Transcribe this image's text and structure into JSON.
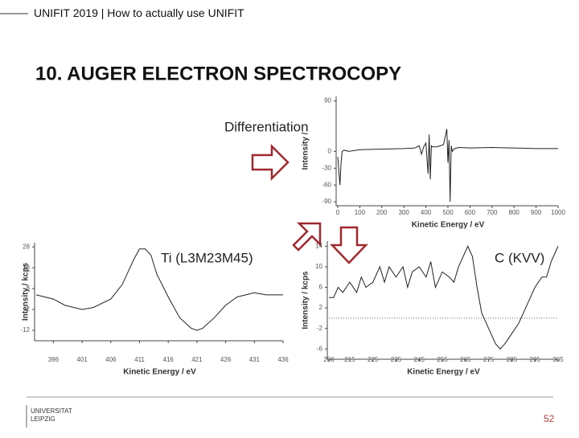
{
  "header": {
    "brand": "UNIFIT 2019",
    "subtitle": " | How to actually use UNIFIT"
  },
  "title": "10. AUGER ELECTRON SPECTROCOPY",
  "annotations": {
    "differentiation": "Differentiation",
    "ti": "Ti (L3M23M45)",
    "c": "C (KVV)"
  },
  "footer": {
    "logo": [
      "UNIVERSITAT",
      "LEIPZIG"
    ],
    "page": "52"
  },
  "chart_data": [
    {
      "type": "line",
      "xlabel": "Kinetic Energy / eV",
      "ylabel": "Intensity /",
      "color": "#222222",
      "x": [
        0,
        10,
        15,
        20,
        30,
        50,
        100,
        200,
        300,
        350,
        370,
        380,
        390,
        400,
        410,
        415,
        420,
        425,
        430,
        450,
        480,
        495,
        500,
        505,
        510,
        515,
        520,
        530,
        550,
        600,
        700,
        800,
        900,
        1000
      ],
      "values": [
        -10,
        -60,
        -20,
        0,
        2,
        0,
        3,
        4,
        5,
        6,
        10,
        -5,
        8,
        15,
        -40,
        30,
        -50,
        10,
        8,
        8,
        12,
        40,
        -20,
        20,
        -90,
        10,
        0,
        5,
        7,
        6,
        7,
        6,
        5,
        5
      ],
      "xlim": [
        0,
        1000
      ],
      "ylim": [
        -97,
        98
      ],
      "xticks": [
        0,
        100,
        200,
        300,
        400,
        500,
        600,
        700,
        800,
        900,
        1000
      ],
      "yticks": [
        90,
        0,
        -30,
        -60,
        -90
      ]
    },
    {
      "type": "line",
      "xlabel": "Kinetic Energy / eV",
      "ylabel": "Intensity / kcps",
      "color": "#222222",
      "x": [
        393,
        396,
        398,
        401,
        403,
        406,
        408,
        410,
        411,
        412,
        413,
        414,
        416,
        418,
        420,
        421,
        422,
        424,
        426,
        428,
        431,
        433,
        436
      ],
      "values": [
        5,
        3,
        0,
        -2,
        -1,
        3,
        10,
        22,
        27,
        27,
        24,
        15,
        4,
        -6,
        -11,
        -12,
        -11,
        -6,
        0,
        4,
        6,
        5,
        5
      ],
      "xlim": [
        393,
        436
      ],
      "ylim": [
        -17,
        30
      ],
      "xticks": [
        396,
        401,
        406,
        411,
        416,
        421,
        426,
        431,
        436
      ],
      "yticks": [
        28,
        18,
        8,
        -2,
        -12
      ]
    },
    {
      "type": "line",
      "xlabel": "Kinetic Energy / eV",
      "ylabel": "Intensity / kcps",
      "color": "#222222",
      "x": [
        206,
        208,
        210,
        212,
        215,
        218,
        220,
        222,
        225,
        228,
        230,
        232,
        235,
        238,
        240,
        242,
        245,
        248,
        250,
        252,
        255,
        258,
        260,
        262,
        264,
        266,
        268,
        270,
        272,
        275,
        278,
        280,
        282,
        285,
        288,
        290,
        292,
        295,
        298,
        300,
        302,
        305
      ],
      "values": [
        4,
        4,
        6,
        5,
        7,
        5,
        8,
        6,
        7,
        10,
        7,
        10,
        8,
        10,
        6,
        9,
        10,
        8,
        11,
        6,
        9,
        8,
        7,
        10,
        12,
        14,
        12,
        6,
        1,
        -2,
        -5,
        -6,
        -5,
        -3,
        -1,
        1,
        3,
        6,
        8,
        8,
        11,
        14
      ],
      "xlim": [
        206,
        305
      ],
      "ylim": [
        -8,
        15
      ],
      "reference_line": 0,
      "xticks": [
        206,
        215,
        225,
        235,
        245,
        255,
        265,
        275,
        285,
        295,
        305
      ],
      "yticks": [
        14,
        10,
        6,
        2,
        -2,
        -6
      ]
    }
  ]
}
